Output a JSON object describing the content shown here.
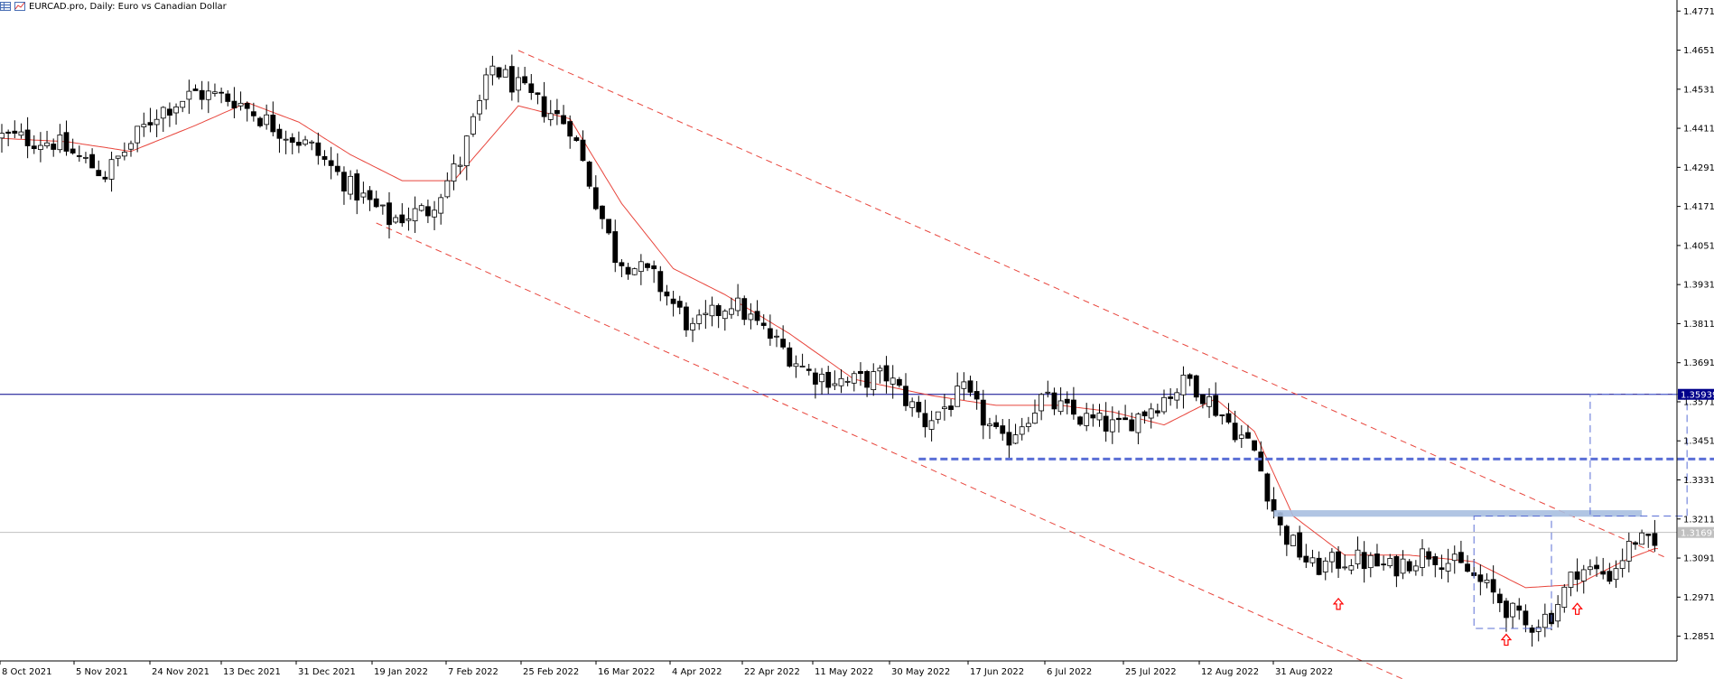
{
  "header": {
    "title": "EURCAD.pro, Daily:  Euro vs Canadian Dollar",
    "icons": [
      "chart-grid-icon",
      "indicator-icon"
    ]
  },
  "price_badges": {
    "current_line_price": "1.35939",
    "bid_price": "1.31697"
  },
  "colors": {
    "bull_candle": "#ffffff",
    "bear_candle": "#000000",
    "moving_average": "#e8453c",
    "channel_lines": "#e8453c",
    "horizontal_line": "#00008b",
    "bid_line": "#c0c0c0",
    "support_dashed": "#5b6fd6",
    "resistance_zone": "#a9bfe0",
    "arrows": "#ff0000"
  },
  "chart_data": {
    "type": "candlestick",
    "symbol": "EURCAD.pro",
    "timeframe": "Daily",
    "description": "Euro vs Canadian Dollar",
    "y_axis": {
      "ticks": [
        "1.47710",
        "1.46510",
        "1.45310",
        "1.44110",
        "1.42910",
        "1.41710",
        "1.40510",
        "1.39310",
        "1.38110",
        "1.36910",
        "1.35710",
        "1.34510",
        "1.33310",
        "1.32110",
        "1.30910",
        "1.29710",
        "1.28510"
      ],
      "range": [
        1.2775,
        1.4805
      ]
    },
    "x_axis": {
      "ticks": [
        "8 Oct 2021",
        "5 Nov 2021",
        "24 Nov 2021",
        "13 Dec 2021",
        "31 Dec 2021",
        "19 Jan 2022",
        "7 Feb 2022",
        "25 Feb 2022",
        "16 Mar 2022",
        "4 Apr 2022",
        "22 Apr 2022",
        "11 May 2022",
        "30 May 2022",
        "17 Jun 2022",
        "6 Jul 2022",
        "25 Jul 2022",
        "12 Aug 2022",
        "31 Aug 2022"
      ]
    },
    "close_path": [
      [
        0,
        1.4385
      ],
      [
        8,
        1.437
      ],
      [
        16,
        1.427
      ],
      [
        24,
        1.446
      ],
      [
        30,
        1.452
      ],
      [
        36,
        1.45
      ],
      [
        42,
        1.442
      ],
      [
        48,
        1.435
      ],
      [
        54,
        1.423
      ],
      [
        60,
        1.413
      ],
      [
        66,
        1.416
      ],
      [
        71,
        1.431
      ],
      [
        76,
        1.46
      ],
      [
        82,
        1.45
      ],
      [
        88,
        1.442
      ],
      [
        95,
        1.402
      ],
      [
        101,
        1.395
      ],
      [
        107,
        1.379
      ],
      [
        113,
        1.388
      ],
      [
        119,
        1.377
      ],
      [
        125,
        1.366
      ],
      [
        131,
        1.363
      ],
      [
        137,
        1.365
      ],
      [
        143,
        1.351
      ],
      [
        149,
        1.36
      ],
      [
        155,
        1.344
      ],
      [
        161,
        1.358
      ],
      [
        167,
        1.352
      ],
      [
        173,
        1.349
      ],
      [
        179,
        1.357
      ],
      [
        184,
        1.364
      ],
      [
        189,
        1.353
      ],
      [
        194,
        1.342
      ],
      [
        198,
        1.318
      ],
      [
        203,
        1.306
      ],
      [
        209,
        1.309
      ],
      [
        215,
        1.306
      ],
      [
        221,
        1.311
      ],
      [
        227,
        1.305
      ],
      [
        232,
        1.296
      ],
      [
        236,
        1.288
      ],
      [
        240,
        1.292
      ],
      [
        244,
        1.306
      ],
      [
        249,
        1.304
      ],
      [
        253,
        1.315
      ],
      [
        256,
        1.312
      ]
    ],
    "moving_average": [
      [
        0,
        1.438
      ],
      [
        10,
        1.437
      ],
      [
        20,
        1.434
      ],
      [
        30,
        1.442
      ],
      [
        38,
        1.449
      ],
      [
        46,
        1.443
      ],
      [
        54,
        1.433
      ],
      [
        62,
        1.425
      ],
      [
        70,
        1.425
      ],
      [
        80,
        1.448
      ],
      [
        88,
        1.444
      ],
      [
        96,
        1.418
      ],
      [
        104,
        1.398
      ],
      [
        112,
        1.39
      ],
      [
        122,
        1.378
      ],
      [
        132,
        1.364
      ],
      [
        144,
        1.359
      ],
      [
        154,
        1.356
      ],
      [
        164,
        1.356
      ],
      [
        172,
        1.354
      ],
      [
        180,
        1.35
      ],
      [
        188,
        1.358
      ],
      [
        194,
        1.348
      ],
      [
        200,
        1.322
      ],
      [
        208,
        1.31
      ],
      [
        218,
        1.31
      ],
      [
        228,
        1.308
      ],
      [
        236,
        1.3
      ],
      [
        244,
        1.301
      ],
      [
        252,
        1.309
      ],
      [
        256,
        1.312
      ]
    ],
    "horizontal_line_price": 1.35939,
    "bid_line_price": 1.31697,
    "annotations": [
      {
        "kind": "upper_channel_dashed",
        "from": [
          80,
          1.465
        ],
        "to": [
          258,
          1.309
        ]
      },
      {
        "kind": "lower_channel_dashed",
        "from": [
          58,
          1.412
        ],
        "to": [
          226,
          1.264
        ]
      },
      {
        "kind": "support_dashed_line",
        "from": [
          142,
          1.3395
        ],
        "to": [
          266,
          1.3395
        ]
      },
      {
        "kind": "resistance_zone",
        "from": [
          197,
          1.3218
        ],
        "to": [
          254,
          1.3238
        ]
      },
      {
        "kind": "dashed_box",
        "from": [
          228,
          1.2875
        ],
        "to": [
          240,
          1.322
        ]
      },
      {
        "kind": "dashed_projection",
        "from": [
          246,
          1.322
        ],
        "to": [
          261,
          1.3594
        ]
      },
      {
        "kind": "up_arrow",
        "at": [
          207,
          1.295
        ]
      },
      {
        "kind": "up_arrow",
        "at": [
          233,
          1.284
        ]
      },
      {
        "kind": "up_arrow",
        "at": [
          244,
          1.2935
        ]
      }
    ]
  }
}
